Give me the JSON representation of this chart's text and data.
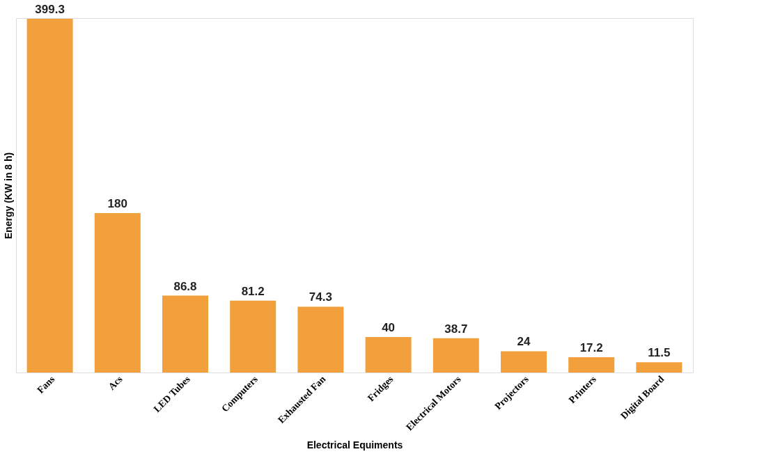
{
  "chart_data": {
    "type": "bar",
    "xlabel": "Electrical Equiments",
    "ylabel": "Energy (KW in 8 h)",
    "categories": [
      "Fans",
      "Acs",
      "LED Tubes",
      "Computers",
      "Exhausted Fan",
      "Fridges",
      "Electrical Motors",
      "Projectors",
      "Printers",
      "Digital Board"
    ],
    "values": [
      399.3,
      180,
      86.8,
      81.2,
      74.3,
      40,
      38.7,
      24,
      17.2,
      11.5
    ],
    "color": "#f2a03c",
    "data_labels": true,
    "grid": false,
    "tick_labels": "x"
  }
}
